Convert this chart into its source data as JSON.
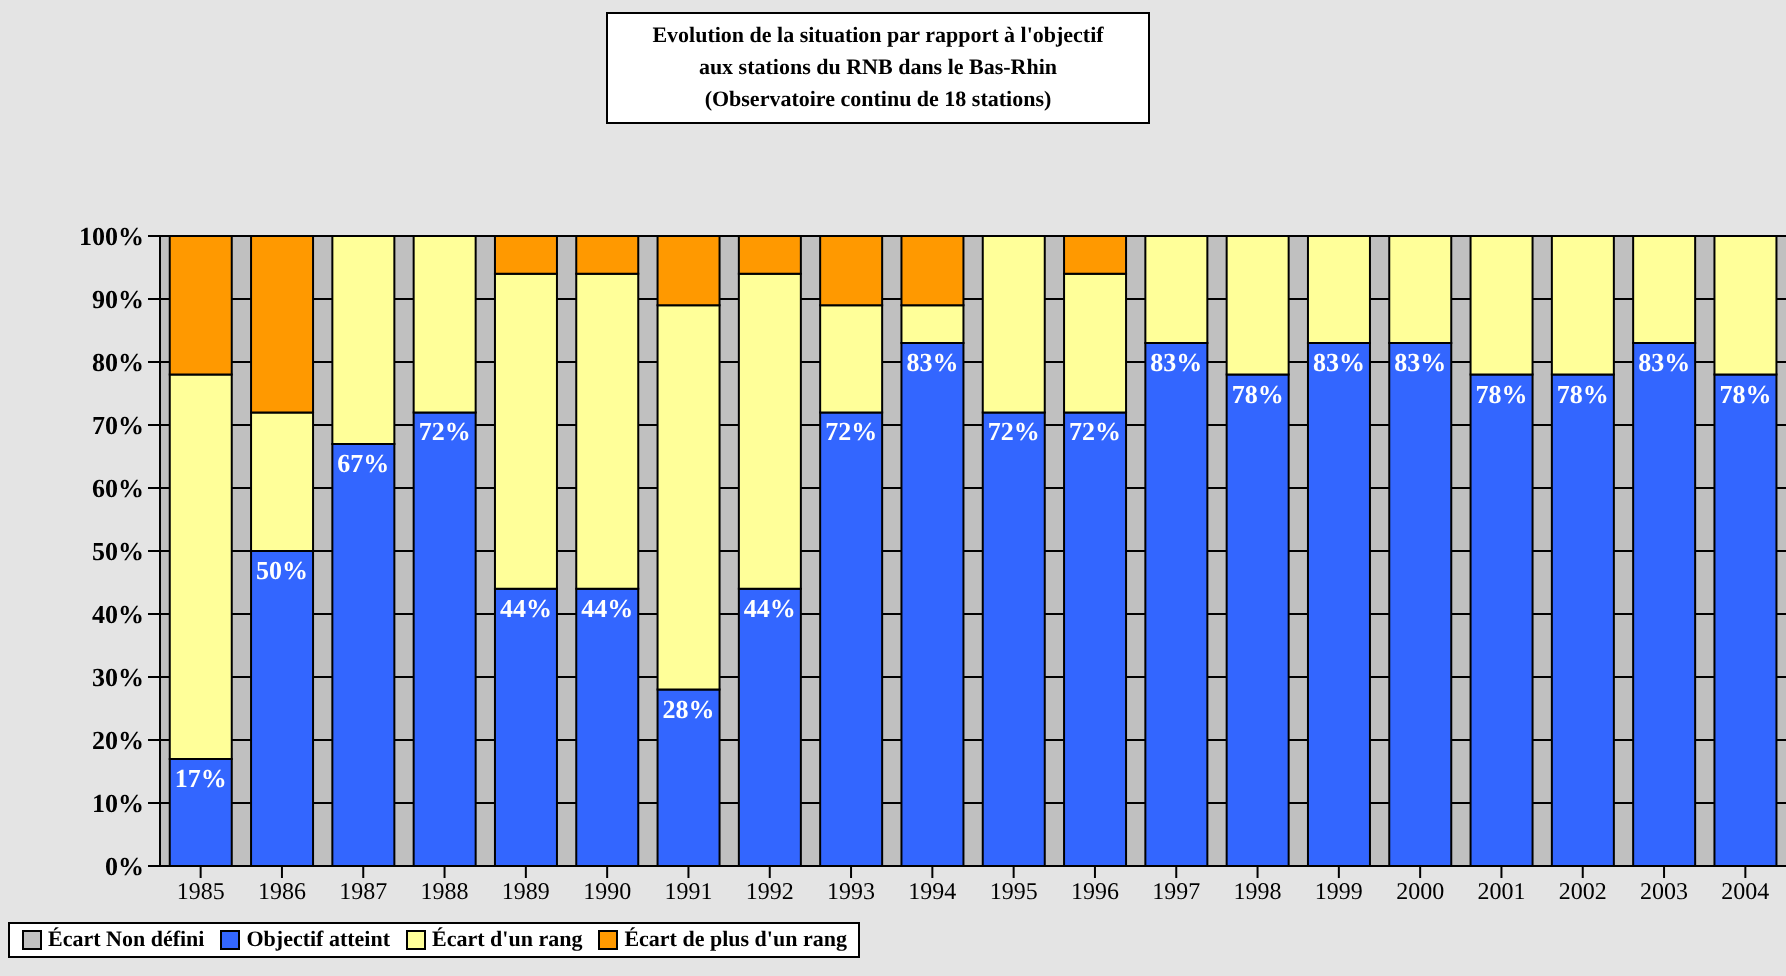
{
  "chart_data": {
    "type": "bar",
    "stacked": true,
    "title": "Evolution de la situation par rapport à l'objectif\naux stations du RNB dans le Bas-Rhin\n(Observatoire continu de 18 stations)",
    "categories": [
      "1985",
      "1986",
      "1987",
      "1988",
      "1989",
      "1990",
      "1991",
      "1992",
      "1993",
      "1994",
      "1995",
      "1996",
      "1997",
      "1998",
      "1999",
      "2000",
      "2001",
      "2002",
      "2003",
      "2004"
    ],
    "series": [
      {
        "name": "Écart Non défini",
        "color": "#c0c0c0",
        "values": [
          0,
          0,
          0,
          0,
          0,
          0,
          0,
          0,
          0,
          0,
          0,
          0,
          0,
          0,
          0,
          0,
          0,
          0,
          0,
          0
        ]
      },
      {
        "name": "Objectif atteint",
        "color": "#3366ff",
        "values": [
          17,
          50,
          67,
          72,
          44,
          44,
          28,
          44,
          72,
          83,
          72,
          72,
          83,
          78,
          83,
          83,
          78,
          78,
          83,
          78
        ],
        "value_labels": [
          "17%",
          "50%",
          "67%",
          "72%",
          "44%",
          "44%",
          "28%",
          "44%",
          "72%",
          "83%",
          "72%",
          "72%",
          "83%",
          "78%",
          "83%",
          "83%",
          "78%",
          "78%",
          "83%",
          "78%"
        ]
      },
      {
        "name": "Écart d'un rang",
        "color": "#ffff99",
        "values": [
          61,
          22,
          33,
          28,
          50,
          50,
          61,
          50,
          17,
          6,
          28,
          22,
          17,
          22,
          17,
          17,
          22,
          22,
          17,
          22
        ]
      },
      {
        "name": "Écart de plus d'un rang",
        "color": "#ff9900",
        "values": [
          22,
          28,
          0,
          0,
          6,
          6,
          11,
          6,
          11,
          11,
          0,
          6,
          0,
          0,
          0,
          0,
          0,
          0,
          0,
          0
        ]
      }
    ],
    "ylim": [
      0,
      100
    ],
    "yticks": [
      {
        "value": 0,
        "label": "0%"
      },
      {
        "value": 10,
        "label": "10%"
      },
      {
        "value": 20,
        "label": "20%"
      },
      {
        "value": 30,
        "label": "30%"
      },
      {
        "value": 40,
        "label": "40%"
      },
      {
        "value": 50,
        "label": "50%"
      },
      {
        "value": 60,
        "label": "60%"
      },
      {
        "value": 70,
        "label": "70%"
      },
      {
        "value": 80,
        "label": "80%"
      },
      {
        "value": 90,
        "label": "90%"
      },
      {
        "value": 100,
        "label": "100%"
      }
    ],
    "grid": "y",
    "legend": "bottom"
  }
}
